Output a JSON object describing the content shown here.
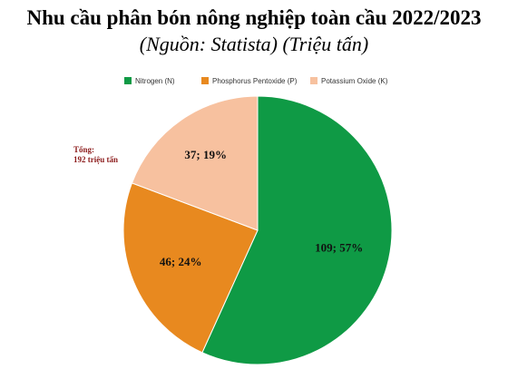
{
  "header": {
    "title": "Nhu cầu phân bón nông nghiệp toàn cầu 2022/2023",
    "subtitle": "(Nguồn: Statista) (Triệu tấn)"
  },
  "annotation": {
    "total_line1": "Tổng:",
    "total_line2": "192 triệu tấn"
  },
  "chart_data": {
    "type": "pie",
    "title": "Nhu cầu phân bón nông nghiệp toàn cầu 2022/2023",
    "subtitle": "(Nguồn: Statista) (Triệu tấn)",
    "legend_position": "top",
    "slices": [
      {
        "name": "Nitrogen (N)",
        "value": 109,
        "percent": 57,
        "label": "109; 57%",
        "color": "#0f9a45"
      },
      {
        "name": "Phosphorus Pentoxide (P)",
        "value": 46,
        "percent": 24,
        "label": "46; 24%",
        "color": "#e8891f"
      },
      {
        "name": "Potassium Oxide (K)",
        "value": 37,
        "percent": 19,
        "label": "37; 19%",
        "color": "#f7c19f"
      }
    ],
    "total_label": "Tổng: 192 triệu tấn"
  }
}
